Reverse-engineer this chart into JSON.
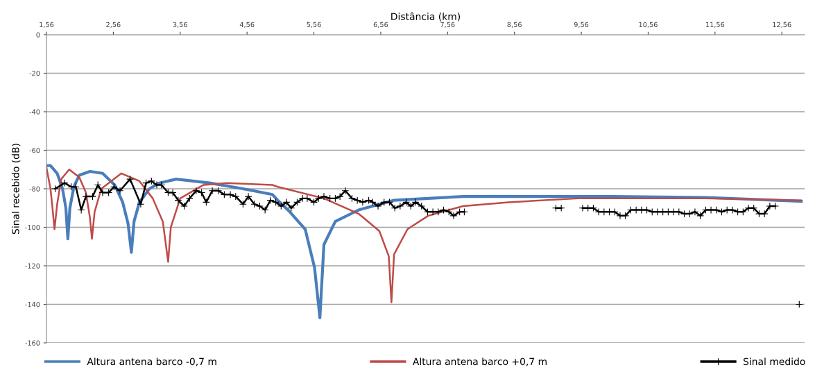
{
  "chart_data": {
    "type": "line",
    "xlabel": "Distância (km)",
    "ylabel": "Sinal recebido (dB)",
    "xlim": [
      1.56,
      12.9
    ],
    "ylim": [
      -160,
      0
    ],
    "xticks": [
      {
        "value": 1.56,
        "label": "1,56"
      },
      {
        "value": 2.56,
        "label": "2,56"
      },
      {
        "value": 3.56,
        "label": "3,56"
      },
      {
        "value": 4.56,
        "label": "4,56"
      },
      {
        "value": 5.56,
        "label": "5,56"
      },
      {
        "value": 6.56,
        "label": "6,56"
      },
      {
        "value": 7.56,
        "label": "7,56"
      },
      {
        "value": 8.56,
        "label": "8,56"
      },
      {
        "value": 9.56,
        "label": "9,56"
      },
      {
        "value": 10.56,
        "label": "10,56"
      },
      {
        "value": 11.56,
        "label": "11,56"
      },
      {
        "value": 12.56,
        "label": "12,56"
      }
    ],
    "yticks": [
      0,
      -20,
      -40,
      -60,
      -80,
      -100,
      -120,
      -140,
      -160
    ],
    "grid": "y",
    "legend": "bottom",
    "series": [
      {
        "name": "Altura antena barco -0,7 m",
        "color": "#4a7ebb",
        "marker": "none",
        "x": [
          1.56,
          1.62,
          1.72,
          1.8,
          1.85,
          1.88,
          1.91,
          1.97,
          2.05,
          2.21,
          2.4,
          2.58,
          2.7,
          2.78,
          2.83,
          2.87,
          2.95,
          3.1,
          3.25,
          3.5,
          4.0,
          4.5,
          4.94,
          5.02,
          5.2,
          5.43,
          5.57,
          5.65,
          5.71,
          5.88,
          6.23,
          6.75,
          7.79,
          8.47,
          10.03,
          11.42,
          12.85
        ],
        "values": [
          -68,
          -68,
          -72,
          -80,
          -90,
          -106,
          -90,
          -79,
          -73,
          -71,
          -72,
          -78,
          -87,
          -98,
          -113,
          -97,
          -87,
          -80,
          -77,
          -75,
          -77,
          -80,
          -83,
          -86,
          -92,
          -101,
          -121,
          -147,
          -109,
          -97,
          -91,
          -86,
          -84,
          -84,
          -84,
          -84.5,
          -86.5
        ]
      },
      {
        "name": "Altura antena barco +0,7 m",
        "color": "#be4b48",
        "marker": "none",
        "x": [
          1.56,
          1.62,
          1.65,
          1.68,
          1.72,
          1.78,
          1.9,
          2.05,
          2.15,
          2.21,
          2.24,
          2.28,
          2.38,
          2.68,
          2.95,
          3.15,
          3.3,
          3.38,
          3.42,
          3.56,
          3.91,
          4.26,
          4.94,
          5.02,
          5.71,
          6.23,
          6.54,
          6.68,
          6.72,
          6.76,
          6.96,
          7.27,
          7.79,
          8.47,
          9.51,
          11.42,
          12.85
        ],
        "values": [
          -69,
          -80,
          -90,
          -101,
          -88,
          -75,
          -70,
          -74,
          -82,
          -95,
          -106,
          -92,
          -80,
          -72,
          -76,
          -85,
          -97,
          -118,
          -100,
          -85,
          -78,
          -77,
          -78,
          -79,
          -85,
          -93,
          -102,
          -115,
          -139,
          -114,
          -101,
          -94,
          -89,
          -87,
          -85,
          -85,
          -86
        ]
      },
      {
        "name": "Sinal medido",
        "color": "#000000",
        "marker": "cross",
        "x": [
          1.69,
          1.83,
          1.93,
          2.0,
          2.08,
          2.15,
          2.25,
          2.33,
          2.4,
          2.49,
          2.57,
          2.66,
          2.81,
          2.97,
          3.05,
          3.13,
          3.21,
          3.28,
          3.38,
          3.45,
          3.53,
          3.62,
          3.7,
          3.8,
          3.88,
          3.95,
          4.04,
          4.13,
          4.22,
          4.31,
          4.39,
          4.5,
          4.58,
          4.67,
          4.75,
          4.83,
          4.91,
          4.99,
          5.07,
          5.15,
          5.22,
          5.31,
          5.39,
          5.46,
          5.56,
          5.63,
          5.71,
          5.8,
          5.88,
          5.95,
          6.03,
          6.13,
          6.21,
          6.29,
          6.38,
          6.44,
          6.52,
          6.61,
          6.69,
          6.77,
          6.85,
          6.94,
          7.01,
          7.08,
          7.17,
          7.26,
          7.34,
          7.42,
          7.5,
          7.58,
          7.65,
          7.74,
          7.81,
          8.5,
          9.18,
          9.26,
          9.42,
          9.58,
          9.66,
          9.74,
          9.82,
          9.9,
          9.98,
          10.06,
          10.14,
          10.22,
          10.3,
          10.38,
          10.46,
          10.54,
          10.62,
          10.7,
          10.78,
          10.86,
          10.94,
          11.02,
          11.1,
          11.18,
          11.26,
          11.34,
          11.42,
          11.5,
          11.58,
          11.66,
          11.74,
          11.82,
          11.9,
          11.98,
          12.06,
          12.14,
          12.22,
          12.3,
          12.38,
          12.46,
          12.64,
          12.82
        ],
        "values": [
          -80,
          -77,
          -79,
          -79,
          -91,
          -84,
          -84,
          -78,
          -82,
          -82,
          -79,
          -81,
          -75,
          -88,
          -77,
          -76,
          -78,
          -78,
          -82,
          -82,
          -86,
          -89,
          -85,
          -81,
          -82,
          -87,
          -81,
          -81,
          -83,
          -83,
          -84,
          -88,
          -84,
          -88,
          -89,
          -91,
          -86,
          -87,
          -89,
          -87,
          -90,
          -87,
          -85,
          -85,
          -87,
          -85,
          -84,
          -85,
          -85,
          -84,
          -81,
          -85,
          -86,
          -87,
          -86,
          -87,
          -89,
          -87,
          -87,
          -90,
          -89,
          -87,
          -89,
          -87,
          -89,
          -92,
          -92,
          -92,
          -91,
          -92,
          -94,
          -92,
          -92,
          null,
          -90,
          -90,
          null,
          -90,
          -90,
          -90,
          -92,
          -92,
          -92,
          -92,
          -94,
          -94,
          -91,
          -91,
          -91,
          -91,
          -92,
          -92,
          -92,
          -92,
          -92,
          -92,
          -93,
          -93,
          -92,
          -94,
          -91,
          -91,
          -91,
          -92,
          -91,
          -91,
          -92,
          -92,
          -90,
          -90,
          -93,
          -93,
          -89,
          -89,
          null,
          -140
        ]
      }
    ]
  }
}
